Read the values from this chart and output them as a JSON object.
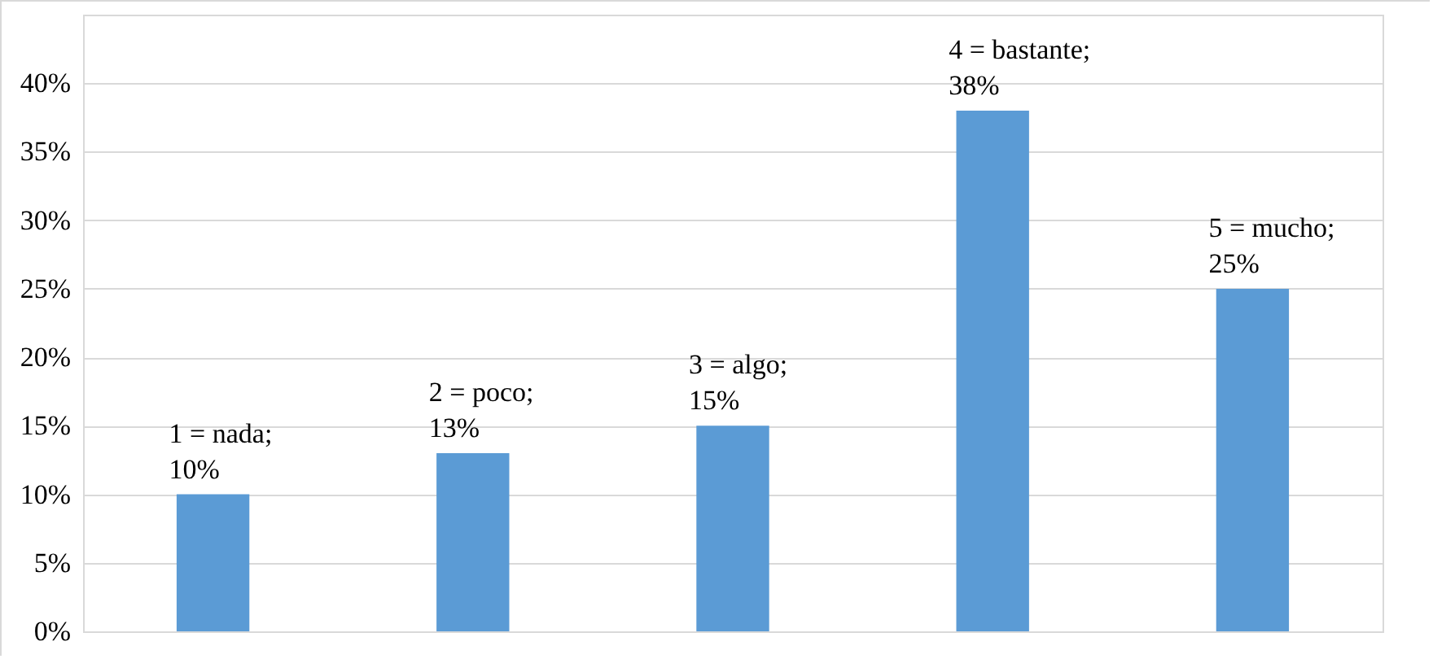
{
  "chart_data": {
    "type": "bar",
    "categories": [
      null,
      null,
      null,
      null,
      null
    ],
    "values": [
      10,
      13,
      15,
      38,
      25
    ],
    "value_labels": [
      "1 = nada; 10%",
      "2 = poco; 13%",
      "3 = algo; 15%",
      "4 = bastante; 38%",
      "5 = mucho; 25%"
    ],
    "color": "#5b9bd5",
    "ylim": [
      0,
      45
    ],
    "yticks": [
      {
        "value": 0,
        "label": "0%"
      },
      {
        "value": 5,
        "label": "5%"
      },
      {
        "value": 10,
        "label": "10%"
      },
      {
        "value": 15,
        "label": "15%"
      },
      {
        "value": 20,
        "label": "20%"
      },
      {
        "value": 25,
        "label": "25%"
      },
      {
        "value": 30,
        "label": "30%"
      },
      {
        "value": 35,
        "label": "35%"
      },
      {
        "value": 40,
        "label": "40%"
      }
    ],
    "grid": "y"
  }
}
